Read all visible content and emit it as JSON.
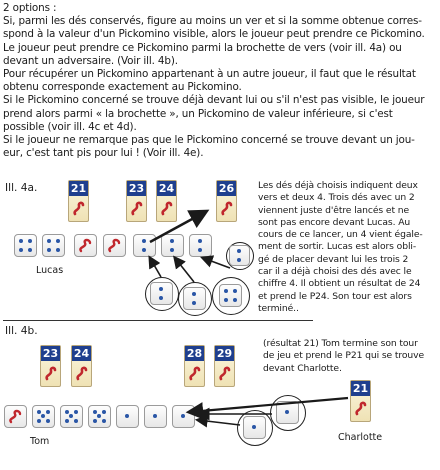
{
  "intro": {
    "lines": [
      "2 options :",
      "Si, parmi les dés conservés, figure au moins un ver et si la somme obtenue corres-",
      "spond à la valeur d'un Pickomino visible, alors le joueur peut prendre ce Pickomino.",
      "Le joueur peut prendre ce Pickomino parmi la brochette de vers (voir ill. 4a) ou",
      "devant un adversaire. (Voir ill. 4b).",
      "Pour récupérer un Pickomino appartenant à un autre joueur, il faut que le résultat",
      "obtenu corresponde exactement au Pickomino.",
      "Si le Pickomino concerné se trouve déjà devant lui ou s'il n'est pas visible, le joueur",
      "prend alors parmi « la brochette », un Pickomino de valeur inférieure, si c'est",
      "possible (voir ill. 4c et 4d).",
      "Si le joueur ne remarque pas que le Pickomino concerné se trouve devant un jou-",
      "eur, c'est tant pis pour lui ! (Voir ill. 4e)."
    ]
  },
  "ill4a": {
    "label": "Ill. 4a.",
    "tiles": [
      "21",
      "23",
      "24",
      "26"
    ],
    "player": "Lucas",
    "caption": [
      "Les dés déjà choisis indiquent deux",
      "vers et deux 4. Trois dés avec un 2",
      "viennent juste d'être lancés et ne",
      "sont pas encore devant Lucas. Au",
      "cours de ce lancer, un 4 vient égale-",
      "ment de sortir. Lucas est alors obli-",
      "gé de placer devant lui les trois 2",
      "car il a déjà choisi des dés avec le",
      "chiffre 4. Il obtient un résultat de 24",
      "et prend le P24. Son tour est alors",
      "terminé.."
    ]
  },
  "ill4b": {
    "label": "Ill. 4b.",
    "tiles": [
      "23",
      "24",
      "28",
      "29"
    ],
    "opponent_tile": "21",
    "player": "Tom",
    "opponent": "Charlotte",
    "caption": [
      "(résultat 21) Tom termine son tour",
      "de jeu et prend le P21 qui se trouve",
      "devant Charlotte."
    ]
  },
  "colors": {
    "tile_header": "#1f3f8e",
    "tile_body": "#f5ecc8",
    "pip": "#2a56a6",
    "worm": "#c0272d"
  }
}
